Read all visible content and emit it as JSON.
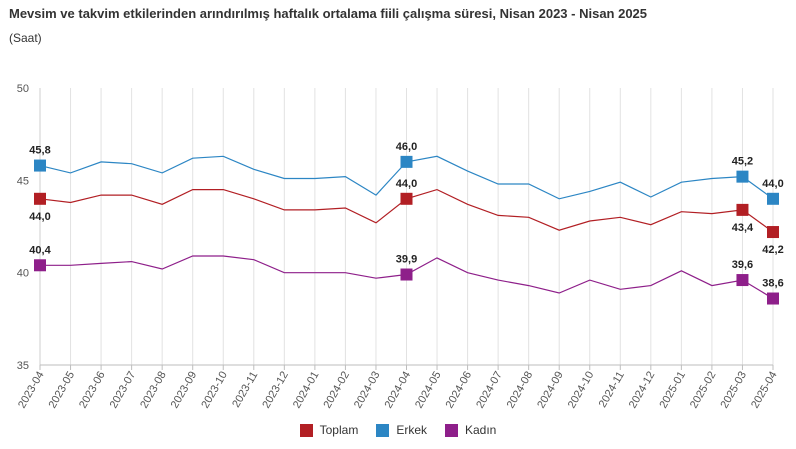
{
  "title": "Mevsim ve takvim etkilerinden arındırılmış haftalık ortalama fiili çalışma süresi, Nisan 2023 - Nisan 2025",
  "subtitle": "(Saat)",
  "chart_data": {
    "type": "line",
    "title": "Mevsim ve takvim etkilerinden arındırılmış haftalık ortalama fiili çalışma süresi, Nisan 2023 - Nisan 2025",
    "ylabel": "(Saat)",
    "ylim": [
      35,
      50
    ],
    "yticks": [
      35,
      40,
      45,
      50
    ],
    "grid": "vertical",
    "legend_position": "bottom",
    "categories": [
      "2023-04",
      "2023-05",
      "2023-06",
      "2023-07",
      "2023-08",
      "2023-09",
      "2023-10",
      "2023-11",
      "2023-12",
      "2024-01",
      "2024-02",
      "2024-03",
      "2024-04",
      "2024-05",
      "2024-06",
      "2024-07",
      "2024-08",
      "2024-09",
      "2024-10",
      "2024-11",
      "2024-12",
      "2025-01",
      "2025-02",
      "2025-03",
      "2025-04"
    ],
    "series": [
      {
        "name": "Toplam",
        "color": "#b21f24",
        "values": [
          44.0,
          43.8,
          44.2,
          44.2,
          43.7,
          44.5,
          44.5,
          44.0,
          43.4,
          43.4,
          43.5,
          42.7,
          44.0,
          44.5,
          43.7,
          43.1,
          43.0,
          42.3,
          42.8,
          43.0,
          42.6,
          43.3,
          43.2,
          43.4,
          42.2
        ],
        "labels": [
          {
            "i": 0,
            "text": "44,0",
            "pos": "below"
          },
          {
            "i": 12,
            "text": "44,0",
            "pos": "above"
          },
          {
            "i": 23,
            "text": "43,4",
            "pos": "below"
          },
          {
            "i": 24,
            "text": "42,2",
            "pos": "below"
          }
        ]
      },
      {
        "name": "Erkek",
        "color": "#2c86c4",
        "values": [
          45.8,
          45.4,
          46.0,
          45.9,
          45.4,
          46.2,
          46.3,
          45.6,
          45.1,
          45.1,
          45.2,
          44.2,
          46.0,
          46.3,
          45.5,
          44.8,
          44.8,
          44.0,
          44.4,
          44.9,
          44.1,
          44.9,
          45.1,
          45.2,
          44.0
        ],
        "labels": [
          {
            "i": 0,
            "text": "45,8",
            "pos": "above"
          },
          {
            "i": 12,
            "text": "46,0",
            "pos": "above"
          },
          {
            "i": 23,
            "text": "45,2",
            "pos": "above"
          },
          {
            "i": 24,
            "text": "44,0",
            "pos": "above"
          }
        ]
      },
      {
        "name": "Kadın",
        "color": "#8e1f8a",
        "values": [
          40.4,
          40.4,
          40.5,
          40.6,
          40.2,
          40.9,
          40.9,
          40.7,
          40.0,
          40.0,
          40.0,
          39.7,
          39.9,
          40.8,
          40.0,
          39.6,
          39.3,
          38.9,
          39.6,
          39.1,
          39.3,
          40.1,
          39.3,
          39.6,
          38.6
        ],
        "labels": [
          {
            "i": 0,
            "text": "40,4",
            "pos": "above"
          },
          {
            "i": 12,
            "text": "39,9",
            "pos": "above"
          },
          {
            "i": 23,
            "text": "39,6",
            "pos": "above"
          },
          {
            "i": 24,
            "text": "38,6",
            "pos": "above"
          }
        ]
      }
    ],
    "markers_at": [
      0,
      12,
      23,
      24
    ]
  }
}
